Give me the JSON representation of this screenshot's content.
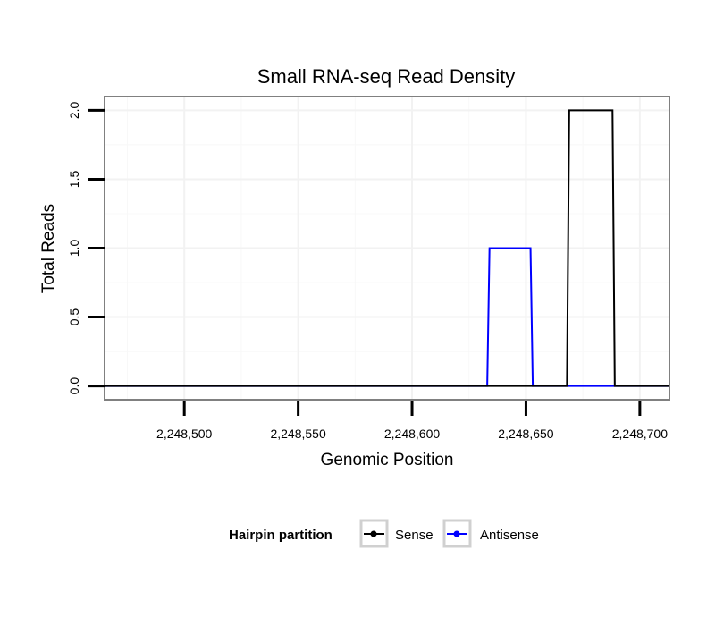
{
  "chart_data": {
    "type": "line",
    "title": "Small RNA-seq Read Density",
    "xlabel": "Genomic Position",
    "ylabel": "Total Reads",
    "xlim": [
      2248465,
      2248713
    ],
    "ylim": [
      -0.1,
      2.1
    ],
    "x_ticks": [
      2248500,
      2248550,
      2248600,
      2248650,
      2248700
    ],
    "x_tick_labels": [
      "2,248,500",
      "2,248,550",
      "2,248,600",
      "2,248,650",
      "2,248,700"
    ],
    "y_ticks": [
      0,
      0.5,
      1,
      1.5,
      2
    ],
    "y_tick_labels": [
      "0.0",
      "0.5",
      "1.0",
      "1.5",
      "2.0"
    ],
    "grid": true,
    "legend": {
      "position": "bottom",
      "title": "Hairpin partition",
      "entries": [
        "Sense",
        "Antisense"
      ]
    },
    "series": [
      {
        "name": "Sense",
        "color": "#000000",
        "x": [
          2248465,
          2248668,
          2248669,
          2248688,
          2248689,
          2248713
        ],
        "y": [
          0,
          0,
          2,
          2,
          0,
          0
        ]
      },
      {
        "name": "Antisense",
        "color": "#0000ff",
        "x": [
          2248465,
          2248633,
          2248634,
          2248652,
          2248653,
          2248668,
          2248669,
          2248688,
          2248689,
          2248713
        ],
        "y": [
          0,
          0,
          1,
          1,
          0,
          0,
          0,
          0,
          0,
          0
        ]
      }
    ]
  }
}
